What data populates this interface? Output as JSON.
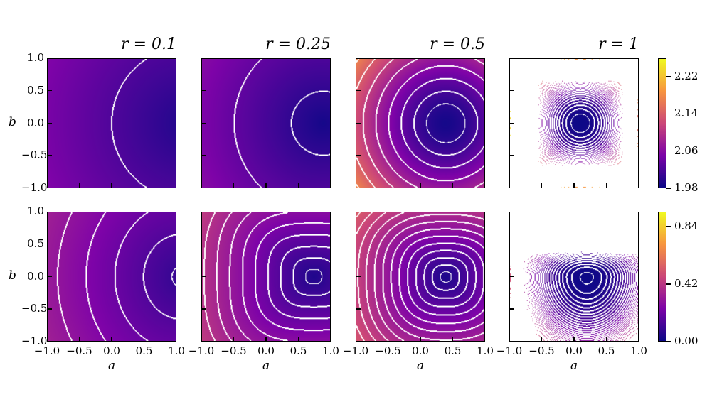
{
  "chart_data": {
    "type": "heatmap",
    "colormap": "plasma",
    "contour_color": "#ffffff",
    "xlabel": "a",
    "ylabel": "b",
    "xlim": [
      -1.0,
      1.0
    ],
    "ylim": [
      -1.0,
      1.0
    ],
    "xticks": [
      "−1.0",
      "−0.5",
      "0.0",
      "0.5",
      "1.0"
    ],
    "yticks": [
      "1.0",
      "0.5",
      "0.0",
      "−0.5",
      "−1.0"
    ],
    "titles": [
      "r = 0.1",
      "r = 0.25",
      "r = 0.5",
      "r = 1"
    ],
    "rows": [
      {
        "colorbar": {
          "range": [
            1.98,
            2.26
          ],
          "ticks": [
            "2.22",
            "2.14",
            "2.06",
            "1.98"
          ]
        },
        "panels": [
          {
            "r": 0.1,
            "minimum_a": 1.2,
            "minimum_b": 0.0
          },
          {
            "r": 0.25,
            "minimum_a": 0.9,
            "minimum_b": 0.0
          },
          {
            "r": 0.5,
            "minimum_a": 0.4,
            "minimum_b": 0.0
          },
          {
            "r": 1,
            "minimum_a": 0.1,
            "minimum_b": 0.0
          }
        ]
      },
      {
        "colorbar": {
          "range": [
            0.0,
            0.95
          ],
          "ticks": [
            "0.84",
            "0.42",
            "0.00"
          ]
        },
        "panels": [
          {
            "r": 0.1,
            "minimum_a": 1.1,
            "minimum_b": 0.0
          },
          {
            "r": 0.25,
            "minimum_a": 0.75,
            "minimum_b": 0.0
          },
          {
            "r": 0.5,
            "minimum_a": 0.4,
            "minimum_b": 0.0
          },
          {
            "r": 1,
            "minimum_a": 0.2,
            "minimum_b": 0.0
          }
        ]
      }
    ]
  }
}
